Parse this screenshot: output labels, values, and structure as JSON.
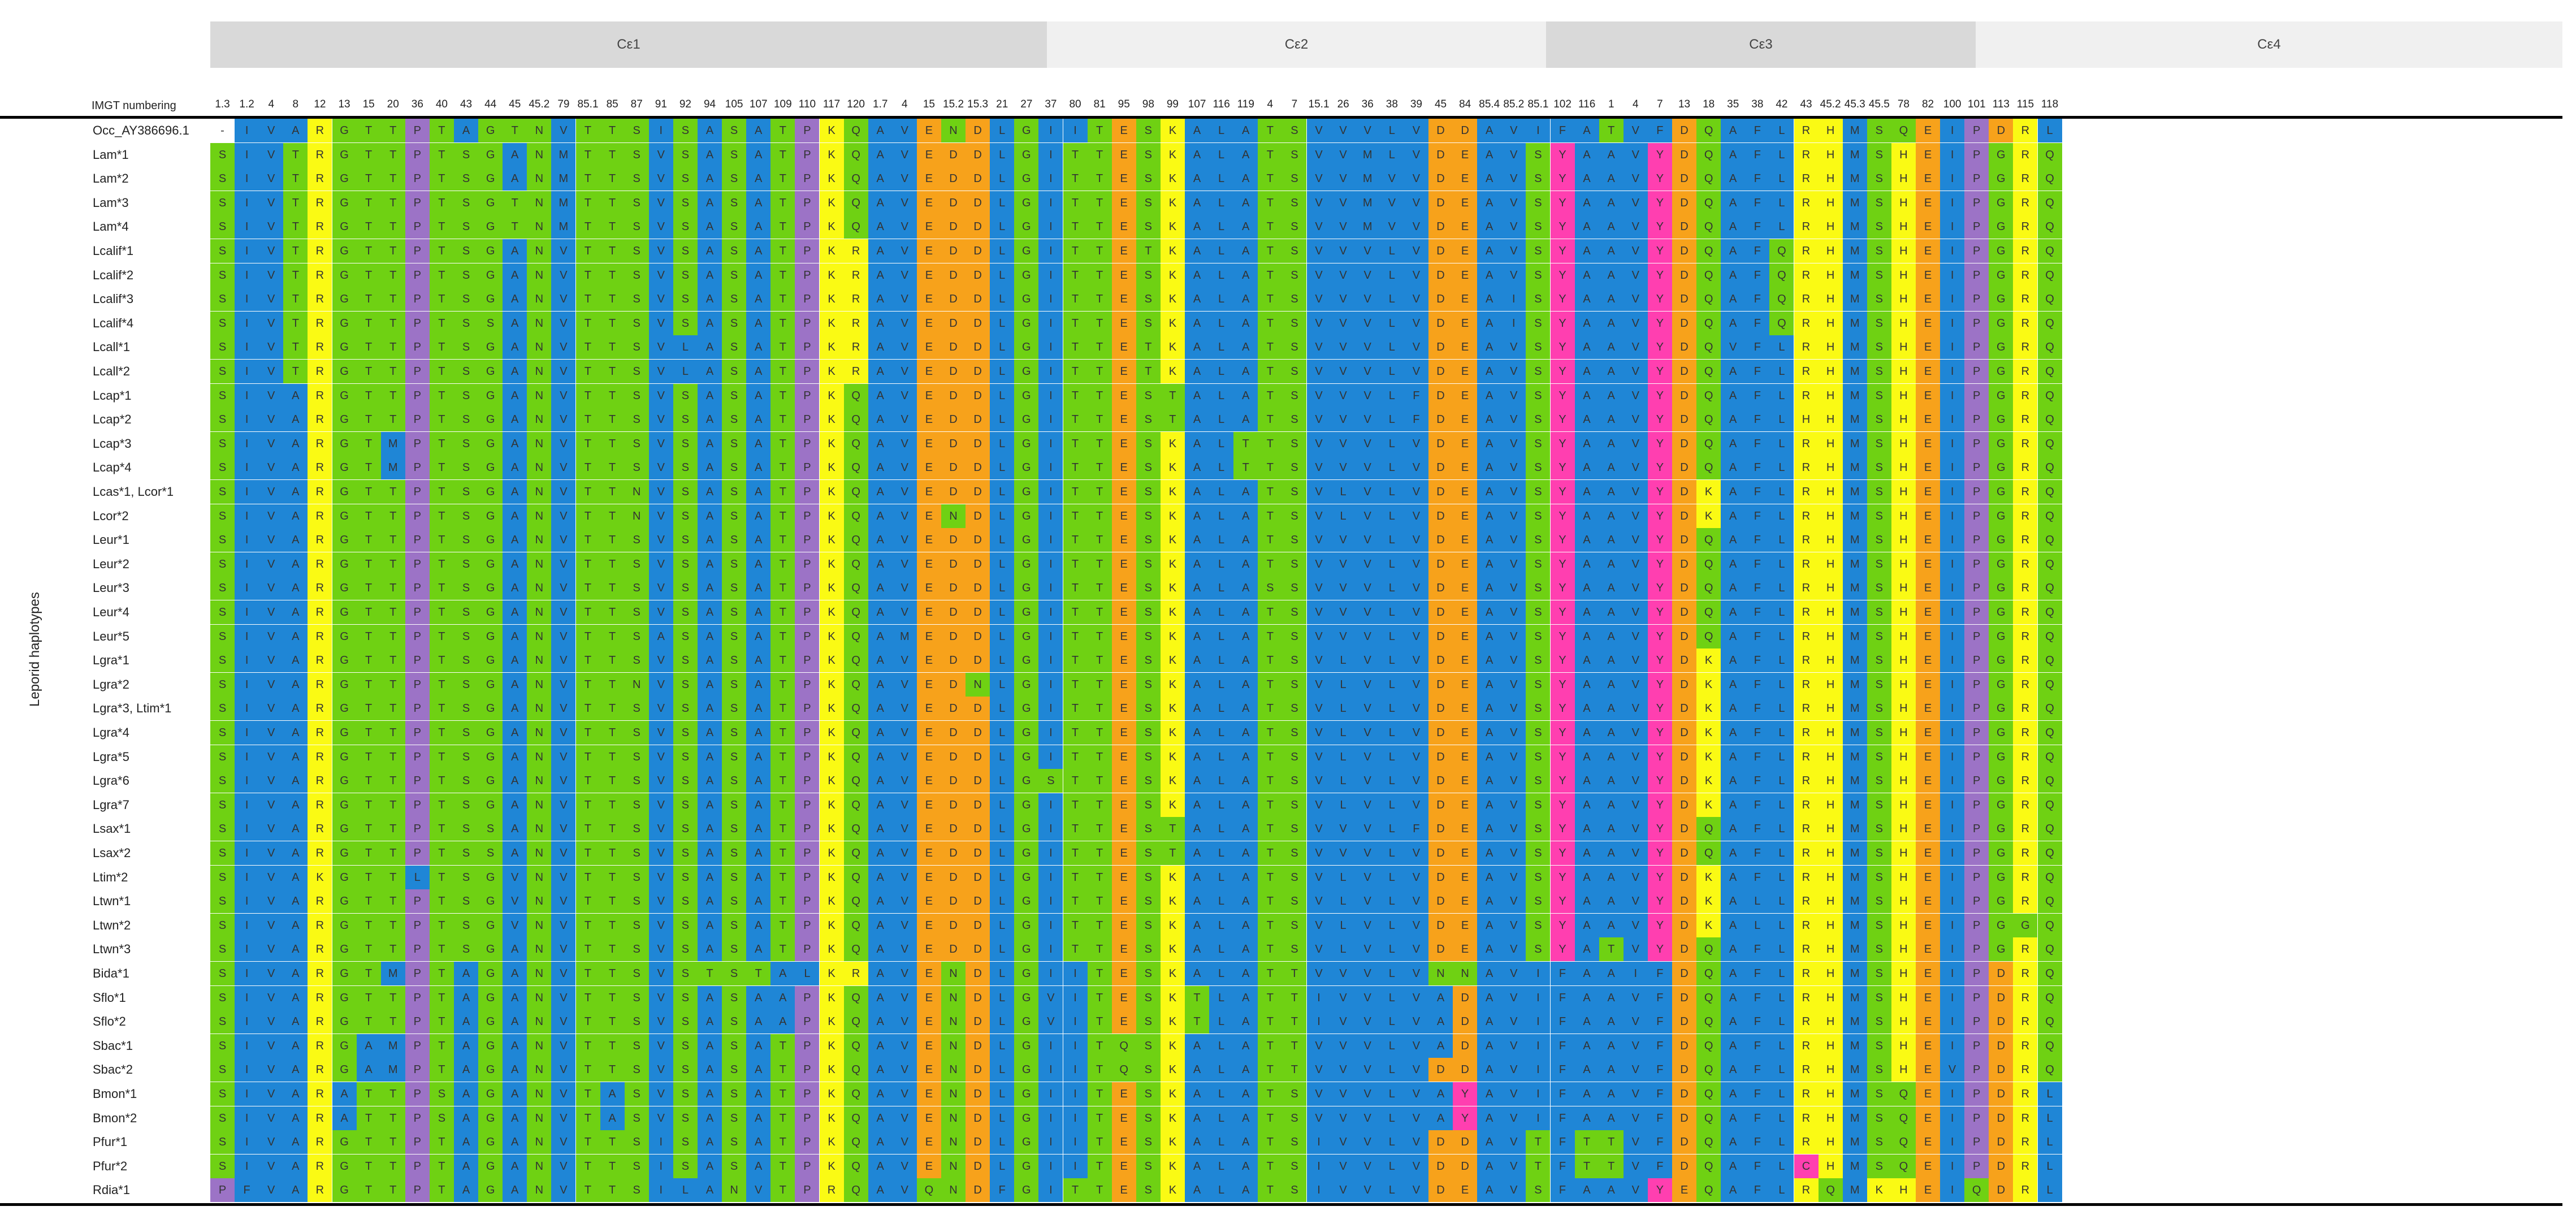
{
  "domains": [
    "Cε1",
    "Cε2",
    "Cε3",
    "Cε4"
  ],
  "numbering_label": "IMGT numbering",
  "positions": [
    "1.3",
    "1.2",
    "4",
    "8",
    "12",
    "13",
    "15",
    "20",
    "36",
    "40",
    "43",
    "44",
    "45",
    "45.2",
    "79",
    "85.1",
    "85",
    "87",
    "91",
    "92",
    "94",
    "105",
    "107",
    "109",
    "110",
    "117",
    "120",
    "1.7",
    "4",
    "15",
    "15.2",
    "15.3",
    "21",
    "27",
    "37",
    "80",
    "81",
    "95",
    "98",
    "99",
    "107",
    "116",
    "119",
    "4",
    "7",
    "15.1",
    "26",
    "36",
    "38",
    "39",
    "45",
    "84",
    "85.4",
    "85.2",
    "85.1",
    "102",
    "116",
    "1",
    "4",
    "7",
    "13",
    "18",
    "35",
    "38",
    "42",
    "43",
    "45.2",
    "45.3",
    "45.5",
    "78",
    "82",
    "100",
    "101",
    "113",
    "115",
    "118"
  ],
  "y_axis_label": "Leporid haplotypes",
  "colors": {
    "blue": "#1f86d6",
    "green": "#6fd113",
    "yellow": "#fafa14",
    "orange": "#f7a21b",
    "pink": "#ff3fb0",
    "purple": "#9c73c6",
    "gray": "#b0b0b0"
  },
  "rows": [
    {
      "name": "Occ_AY386696.1",
      "seq": "-IVARGTTPTAGTNVTTSISASATPKQAVENDLGIITESKALATSVVVLVDDAVIFATVFDQAFLRHMSQEIPDRL"
    },
    {
      "name": "Lam*1",
      "seq": "SIVTRGTTPTSGANMTTSVSASATPKQAVEDDLGITTESKALATSVVMLVDEAVSYAAVYDQAFLRHMSHEIPGRQ"
    },
    {
      "name": "Lam*2",
      "seq": "SIVTRGTTPTSGANMTTSVSASATPKQAVEDDLGITTESKALATSVVMVVDEAVSYAAVYDQAFLRHMSHEIPGRQ"
    },
    {
      "name": "Lam*3",
      "seq": "SIVTRGTTPTSGTNMTTSVSASATPKQAVEDDLGITTESKALATSVVMVVDEAVSYAAVYDQAFLRHMSHEIPGRQ"
    },
    {
      "name": "Lam*4",
      "seq": "SIVTRGTTPTSGTNMTTSVSASATPKQAVEDDLGITTESKALATSVVMVVDEAVSYAAVYDQAFLRHMSHEIPGRQ"
    },
    {
      "name": "Lcalif*1",
      "seq": "SIVTRGTTPTSGANVTTSVSASATPKRAVEDDLGITTETKALATSVVVLVDEAVSYAAVYDQAFQRHMSHEIPGRQ"
    },
    {
      "name": "Lcalif*2",
      "seq": "SIVTRGTTPTSGANVTTSVSASATPKRAVEDDLGITTESKALATSVVVLVDEAVSYAAVYDQAFQRHMSHEIPGRQ"
    },
    {
      "name": "Lcalif*3",
      "seq": "SIVTRGTTPTSGANVTTSVSASATPKRAVEDDLGITTESKALATSVVVLVDEAISYAAVYDQAFQRHMSHEIPGRQ"
    },
    {
      "name": "Lcalif*4",
      "seq": "SIVTRGTTPTSSANVTTSVSASATPKRAVEDDLGITTESKALATSVVVLVDEAISYAAVYDQAFQRHMSHEIPGRQ"
    },
    {
      "name": "Lcall*1",
      "seq": "SIVTRGTTPTSGANVTTSVLASATPKRAVEDDLGITTETKALATSVVVLVDEAVSYAAVYDQVFLRHMSHEIPGRQ"
    },
    {
      "name": "Lcall*2",
      "seq": "SIVTRGTTPTSGANVTTSVLASATPKRAVEDDLGITTETKALATSVVVLVDEAVSYAAVYDQAFLRHMSHEIPGRQ"
    },
    {
      "name": "Lcap*1",
      "seq": "SIVARGTTPTSGANVTTSVSASATPKQAVEDDLGITTESTALATSVVVLFDEAVSYAAVYDQAFLRHMSHEIPGRQ"
    },
    {
      "name": "Lcap*2",
      "seq": "SIVARGTTPTSGANVTTSVSASATPKQAVEDDLGITTESTALATSVVVLFDEAVSYAAVYDQAFLHHMSHEIPGRQ"
    },
    {
      "name": "Lcap*3",
      "seq": "SIVARGTMPTSGANVTTSVSASATPKQAVEDDLGITTESKALTTSVVVLVDEAVSYAAVYDQAFLRHMSHEIPGRQ"
    },
    {
      "name": "Lcap*4",
      "seq": "SIVARGTMPTSGANVTTSVSASATPKQAVEDDLGITTESKALTTSVVVLVDEAVSYAAVYDQAFLRHMSHEIPGRQ"
    },
    {
      "name": "Lcas*1, Lcor*1",
      "seq": "SIVARGTTPTSGANVTTNVSASATPKQAVEDDLGITTESKALATSVLVLVDEAVSYAAVYDKAFLRHMSHEIPGRQ"
    },
    {
      "name": "Lcor*2",
      "seq": "SIVARGTTPTSGANVTTNVSASATPKQAVENDLGITTESKALATSVLVLVDEAVSYAAVYDKAFLRHMSHEIPGRQ"
    },
    {
      "name": "Leur*1",
      "seq": "SIVARGTTPTSGANVTTSVSASATPKQAVEDDLGITTESKALATSVVVLVDEAVSYAAVYDQAFLRHMSHEIPGRQ"
    },
    {
      "name": "Leur*2",
      "seq": "SIVARGTTPTSGANVTTSVSASATPKQAVEDDLGITTESKALATSVVVLVDEAVSYAAVYDQAFLRHMSHEIPGRQ"
    },
    {
      "name": "Leur*3",
      "seq": "SIVARGTTPTSGANVTTSVSASATPKQAVEDDLGITTESKALASSVVVLVDEAVSYAAVYDQAFLRHMSHEIPGRQ"
    },
    {
      "name": "Leur*4",
      "seq": "SIVARGTTPTSGANVTTSVSASATPKQAVEDDLGITTESKALATSVVVLVDEAVSYAAVYDQAFLRHMSHEIPGRQ"
    },
    {
      "name": "Leur*5",
      "seq": "SIVARGTTPTSGANVTTSASASATPKQAMEDDLGITTESKALATSVVVLVDEAVSYAAVYDQAFLRHMSHEIPGRQ"
    },
    {
      "name": "Lgra*1",
      "seq": "SIVARGTTPTSGANVTTSVSASATPKQAVEDDLGITTESKALATSVLVLVDEAVSYAAVYDKAFLRHMSHEIPGRQ"
    },
    {
      "name": "Lgra*2",
      "seq": "SIVARGTTPTSGANVTTNVSASATPKQAVEDNLGITTESKALATSVLVLVDEAVSYAAVYDKAFLRHMSHEIPGRQ"
    },
    {
      "name": "Lgra*3, Ltim*1",
      "seq": "SIVARGTTPTSGANVTTSVSASATPKQAVEDDLGITTESKALATSVLVLVDEAVSYAAVYDKAFLRHMSHEIPGRQ"
    },
    {
      "name": "Lgra*4",
      "seq": "SIVARGTTPTSGANVTTSVSASATPKQAVEDDLGITTESKALATSVLVLVDEAVSYAAVYDKAFLRHMSHEIPGRQ"
    },
    {
      "name": "Lgra*5",
      "seq": "SIVARGTTPTSGANVTTSVSASATPKQAVEDDLGITTESKALATSVLVLVDEAVSYAAVYDKAFLRHMSHEIPGRQ"
    },
    {
      "name": "Lgra*6",
      "seq": "SIVARGTTPTSGANVTTSVSASATPKQAVEDDLGSTTESKALATSVLVLVDEAVSYAAVYDKAFLRHMSHEIPGRQ"
    },
    {
      "name": "Lgra*7",
      "seq": "SIVARGTTPTSGANVTTSVSASATPKQAVEDDLGITTESKALATSVLVLVDEAVSYAAVYDKAFLRHMSHEIPGRQ"
    },
    {
      "name": "Lsax*1",
      "seq": "SIVARGTTPTSSANVTTSVSASATPKQAVEDDLGITTESTALATSVVVLFDEAVSYAAVYDQAFLRHMSHEIPGRQ"
    },
    {
      "name": "Lsax*2",
      "seq": "SIVARGTTPTSSANVTTSVSASATPKQAVEDDLGITTESTALATSVVVLVDEAVSYAAVYDQAFLRHMSHEIPGRQ"
    },
    {
      "name": "Ltim*2",
      "seq": "SIVAKGTTLTSGVNVTTSVSASATPKQAVEDDLGITTESKALATSVLVLVDEAVSYAAVYDKAFLRHMSHEIPGRQ"
    },
    {
      "name": "Ltwn*1",
      "seq": "SIVARGTTPTSGVNVTTSVSASATPKQAVEDDLGITTESKALATSVLVLVDEAVSYAAVYDKALLRHMSHEIPGRQ"
    },
    {
      "name": "Ltwn*2",
      "seq": "SIVARGTTPTSGVNVTTSVSASATPKQAVEDDLGITTESKALATSVLVLVDEAVSYAAVYDKALLRHMSHEIPGGQ"
    },
    {
      "name": "Ltwn*3",
      "seq": "SIVARGTTPTSGANVTTSVSASATPKQAVEDDLGITTESKALATSVLVLVDEAVSYATVYDQAFLRHMSHEIPGRQ"
    },
    {
      "name": "Bida*1",
      "seq": "SIVARGTMPTAGANVTTSVSTSTALKRAVENDLGIITESKALATTVVVLVNNAVIFAAIFDQAFLRHMSHEIPDRQ"
    },
    {
      "name": "Sflo*1",
      "seq": "SIVARGTTPTAGANVTTSVSASAAPKQAVENDLGVITESKTLATTIVVLVADAVIFAAVFDQAFLRHMSHEIPDRQ"
    },
    {
      "name": "Sflo*2",
      "seq": "SIVARGTTPTAGANVTTSVSASAAPKQAVENDLGVITESKTLATTIVVLVADAVIFAAVFDQAFLRHMSHEIPDRQ"
    },
    {
      "name": "Sbac*1",
      "seq": "SIVARGAMPTAGANVTTSVSASATPKQAVENDLGIITQSKALATTVVVLVADAVIFAAVFDQAFLRHMSHEIPDRQ"
    },
    {
      "name": "Sbac*2",
      "seq": "SIVARGAMPTAGANVTTSVSASATPKQAVENDLGIITQSKALATTVVVLVDDAVIFAAVFDQAFLRHMSHEVPDRQ"
    },
    {
      "name": "Bmon*1",
      "seq": "SIVARATTPSAGANVTASVSASATPKQAVENDLGIITESKALATSVVVLVAYAVIFAAVFDQAFLRHMSQEIPDRL"
    },
    {
      "name": "Bmon*2",
      "seq": "SIVARATTPSAGANVTASVSASATPKQAVENDLGIITESKALATSVVVLVAYAVIFAAVFDQAFLRHMSQEIPDRL"
    },
    {
      "name": "Pfur*1",
      "seq": "SIVARGTTPTAGANVTTSISASATPKQAVENDLGIITESKALATSIVVLVDDAVTFTTVFDQAFLRHMSQEIPDRL"
    },
    {
      "name": "Pfur*2",
      "seq": "SIVARGTTPTAGANVTTSISASATPKQAVENDLGIITESKALATSIVVLVDDAVTFTTVFDQAFLCHMSQEIPDRL"
    },
    {
      "name": "Rdia*1",
      "seq": "PFVARGTTPTAGANVTTSILANVTPRQAVQNDFGITTESKALATSIVVLVDEAVSFAAVYEQAFLRQMKHEIQDRL"
    }
  ]
}
